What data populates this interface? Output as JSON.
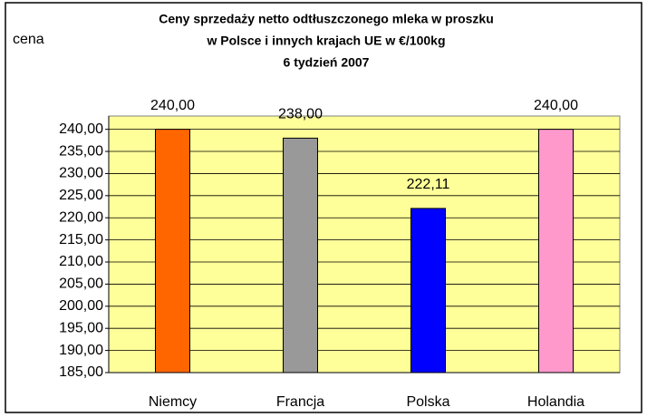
{
  "chart_data": {
    "type": "bar",
    "title": [
      "Ceny sprzedaży netto odtłuszczonego mleka w proszku",
      "w Polsce i innych krajach UE w €/100kg",
      "6 tydzień 2007"
    ],
    "y_label": "cena",
    "categories": [
      "Niemcy",
      "Francja",
      "Polska",
      "Holandia"
    ],
    "values": [
      240,
      238,
      222.11,
      240
    ],
    "value_labels": [
      "240,00",
      "238,00",
      "222,11",
      "240,00"
    ],
    "colors": [
      "#ff6600",
      "#999999",
      "#0000ff",
      "#ff99cc"
    ],
    "ylim": [
      185,
      243
    ],
    "yticks": [
      {
        "value": 185,
        "label": "185,00"
      },
      {
        "value": 190,
        "label": "190,00"
      },
      {
        "value": 195,
        "label": "195,00"
      },
      {
        "value": 200,
        "label": "200,00"
      },
      {
        "value": 205,
        "label": "205,00"
      },
      {
        "value": 210,
        "label": "210,00"
      },
      {
        "value": 215,
        "label": "215,00"
      },
      {
        "value": 220,
        "label": "220,00"
      },
      {
        "value": 225,
        "label": "225,00"
      },
      {
        "value": 230,
        "label": "230,00"
      },
      {
        "value": 235,
        "label": "235,00"
      },
      {
        "value": 240,
        "label": "240,00"
      }
    ],
    "grid": true,
    "plot_background": "#ffff99"
  }
}
